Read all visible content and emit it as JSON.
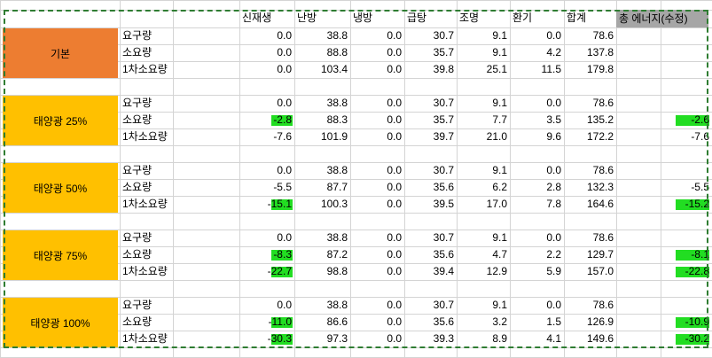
{
  "columns": [
    "신재생",
    "난방",
    "냉방",
    "급탕",
    "조명",
    "환기",
    "합계"
  ],
  "energy_header": "총 에너지(수정)",
  "colors": {
    "basic_group": "#ed7d31",
    "solar_group": "#ffc000",
    "highlight": "#22dd22",
    "header_fill": "#a6a6a6",
    "dashed_border": "#2f7d32"
  },
  "groups": [
    {
      "label": "기본",
      "rows": [
        {
          "label": "요구량",
          "values": [
            "0.0",
            "38.8",
            "0.0",
            "30.7",
            "9.1",
            "0.0",
            "78.6"
          ],
          "energy": ""
        },
        {
          "label": "소요량",
          "values": [
            "0.0",
            "88.8",
            "0.0",
            "35.7",
            "9.1",
            "4.2",
            "137.8"
          ],
          "energy": ""
        },
        {
          "label": "1차소요량",
          "values": [
            "0.0",
            "103.4",
            "0.0",
            "39.8",
            "25.1",
            "11.5",
            "179.8"
          ],
          "energy": ""
        }
      ]
    },
    {
      "label": "태양광 25%",
      "rows": [
        {
          "label": "요구량",
          "values": [
            "0.0",
            "38.8",
            "0.0",
            "30.7",
            "9.1",
            "0.0",
            "78.6"
          ],
          "energy": ""
        },
        {
          "label": "소요량",
          "values": [
            "-2.8",
            "88.3",
            "0.0",
            "35.7",
            "7.7",
            "3.5",
            "135.2"
          ],
          "energy": "-2.6",
          "hl_value": true,
          "hl_energy": true
        },
        {
          "label": "1차소요량",
          "values": [
            "-7.6",
            "101.9",
            "0.0",
            "39.7",
            "21.0",
            "9.6",
            "172.2"
          ],
          "energy": "-7.6"
        }
      ]
    },
    {
      "label": "태양광 50%",
      "rows": [
        {
          "label": "요구량",
          "values": [
            "0.0",
            "38.8",
            "0.0",
            "30.7",
            "9.1",
            "0.0",
            "78.6"
          ],
          "energy": ""
        },
        {
          "label": "소요량",
          "values": [
            "-5.5",
            "87.7",
            "0.0",
            "35.6",
            "6.2",
            "2.8",
            "132.3"
          ],
          "energy": "-5.5"
        },
        {
          "label": "1차소요량",
          "values": [
            "-15.1",
            "100.3",
            "0.0",
            "39.5",
            "17.0",
            "7.8",
            "164.6"
          ],
          "energy": "-15.2",
          "hl_value": true,
          "hl_energy": true
        }
      ]
    },
    {
      "label": "태양광 75%",
      "rows": [
        {
          "label": "요구량",
          "values": [
            "0.0",
            "38.8",
            "0.0",
            "30.7",
            "9.1",
            "0.0",
            "78.6"
          ],
          "energy": ""
        },
        {
          "label": "소요량",
          "values": [
            "-8.3",
            "87.2",
            "0.0",
            "35.6",
            "4.7",
            "2.2",
            "129.7"
          ],
          "energy": "-8.1",
          "hl_value": true,
          "hl_energy": true
        },
        {
          "label": "1차소요량",
          "values": [
            "-22.7",
            "98.8",
            "0.0",
            "39.4",
            "12.9",
            "5.9",
            "157.0"
          ],
          "energy": "-22.8",
          "hl_value": true,
          "hl_energy": true
        }
      ]
    },
    {
      "label": "태양광 100%",
      "rows": [
        {
          "label": "요구량",
          "values": [
            "0.0",
            "38.8",
            "0.0",
            "30.7",
            "9.1",
            "0.0",
            "78.6"
          ],
          "energy": ""
        },
        {
          "label": "소요량",
          "values": [
            "-11.0",
            "86.6",
            "0.0",
            "35.6",
            "3.2",
            "1.5",
            "126.9"
          ],
          "energy": "-10.9",
          "hl_value": true,
          "hl_energy": true
        },
        {
          "label": "1차소요량",
          "values": [
            "-30.3",
            "97.3",
            "0.0",
            "39.3",
            "8.9",
            "4.1",
            "149.6"
          ],
          "energy": "-30.2",
          "hl_value": true,
          "hl_energy": true
        }
      ]
    }
  ]
}
